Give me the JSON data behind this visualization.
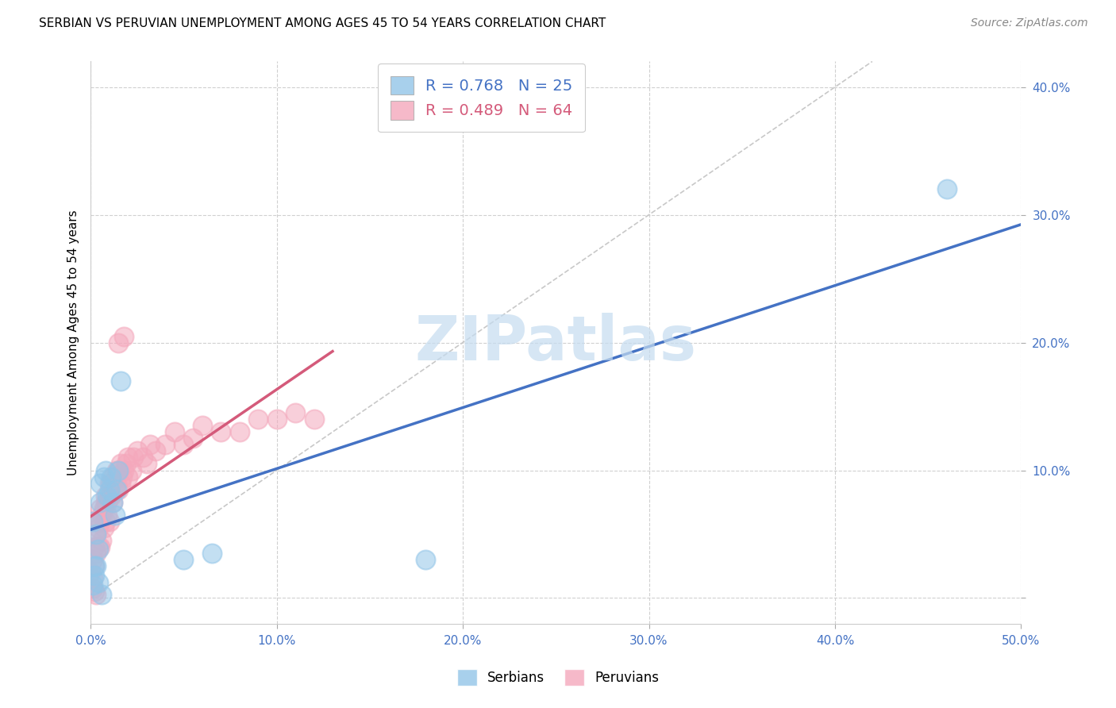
{
  "title": "SERBIAN VS PERUVIAN UNEMPLOYMENT AMONG AGES 45 TO 54 YEARS CORRELATION CHART",
  "source": "Source: ZipAtlas.com",
  "ylabel": "Unemployment Among Ages 45 to 54 years",
  "xlim": [
    0.0,
    0.5
  ],
  "ylim": [
    -0.02,
    0.42
  ],
  "x_ticks": [
    0.0,
    0.1,
    0.2,
    0.3,
    0.4,
    0.5
  ],
  "x_tick_labels": [
    "0.0%",
    "10.0%",
    "20.0%",
    "30.0%",
    "40.0%",
    "50.0%"
  ],
  "y_ticks": [
    0.0,
    0.1,
    0.2,
    0.3,
    0.4
  ],
  "y_tick_labels": [
    "",
    "10.0%",
    "20.0%",
    "30.0%",
    "40.0%"
  ],
  "serbian_color": "#92C5E8",
  "peruvian_color": "#F4A8BC",
  "serbian_line_color": "#4472C4",
  "peruvian_line_color": "#D45A7A",
  "diagonal_color": "#C8C8C8",
  "watermark_color": "#C5DCF0",
  "legend_serbian_R": "0.768",
  "legend_serbian_N": "25",
  "legend_peruvian_R": "0.489",
  "legend_peruvian_N": "64",
  "background_color": "#FFFFFF",
  "grid_color": "#D0D0D0",
  "serbian_x": [
    0.001,
    0.002,
    0.003,
    0.004,
    0.005,
    0.005,
    0.006,
    0.007,
    0.008,
    0.009,
    0.01,
    0.011,
    0.012,
    0.013,
    0.014,
    0.015,
    0.016,
    0.05,
    0.065,
    0.002,
    0.003,
    0.004,
    0.18,
    0.46,
    0.001
  ],
  "serbian_y": [
    0.06,
    0.018,
    0.05,
    0.038,
    0.075,
    0.09,
    0.003,
    0.095,
    0.1,
    0.08,
    0.085,
    0.095,
    0.075,
    0.065,
    0.085,
    0.1,
    0.17,
    0.03,
    0.035,
    0.025,
    0.025,
    0.012,
    0.03,
    0.32,
    0.01
  ],
  "peruvian_x": [
    0.0,
    0.001,
    0.001,
    0.002,
    0.002,
    0.003,
    0.003,
    0.003,
    0.004,
    0.004,
    0.005,
    0.005,
    0.005,
    0.006,
    0.006,
    0.007,
    0.007,
    0.008,
    0.008,
    0.008,
    0.009,
    0.009,
    0.01,
    0.01,
    0.01,
    0.011,
    0.011,
    0.012,
    0.012,
    0.013,
    0.014,
    0.014,
    0.015,
    0.015,
    0.016,
    0.016,
    0.017,
    0.018,
    0.019,
    0.02,
    0.02,
    0.022,
    0.023,
    0.025,
    0.028,
    0.03,
    0.032,
    0.035,
    0.04,
    0.045,
    0.05,
    0.055,
    0.06,
    0.07,
    0.08,
    0.09,
    0.1,
    0.11,
    0.12,
    0.001,
    0.018,
    0.002,
    0.015,
    0.003
  ],
  "peruvian_y": [
    0.02,
    0.015,
    0.03,
    0.025,
    0.04,
    0.035,
    0.05,
    0.06,
    0.04,
    0.055,
    0.04,
    0.06,
    0.07,
    0.045,
    0.065,
    0.055,
    0.07,
    0.06,
    0.075,
    0.08,
    0.065,
    0.075,
    0.06,
    0.08,
    0.09,
    0.08,
    0.09,
    0.075,
    0.095,
    0.085,
    0.09,
    0.1,
    0.085,
    0.1,
    0.09,
    0.105,
    0.095,
    0.1,
    0.105,
    0.095,
    0.11,
    0.1,
    0.11,
    0.115,
    0.11,
    0.105,
    0.12,
    0.115,
    0.12,
    0.13,
    0.12,
    0.125,
    0.135,
    0.13,
    0.13,
    0.14,
    0.14,
    0.145,
    0.14,
    0.008,
    0.205,
    0.005,
    0.2,
    0.003
  ]
}
